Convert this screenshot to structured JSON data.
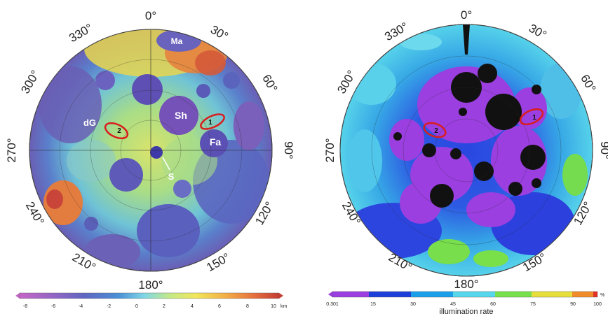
{
  "left_map": {
    "longitude_labels": [
      "0°",
      "30°",
      "60°",
      "90°",
      "120°",
      "150°",
      "180°",
      "210°",
      "240°",
      "270°",
      "300°",
      "330°"
    ],
    "feature_labels": {
      "ma": "Ma",
      "sh": "Sh",
      "fa": "Fa",
      "dg": "dG",
      "s": "S"
    },
    "site_labels": {
      "site1": "1",
      "site2": "2"
    },
    "colorbar": {
      "ticks": [
        "-8",
        "-6",
        "-4",
        "-2",
        "0",
        "2",
        "4",
        "6",
        "8",
        "10"
      ],
      "unit": "km",
      "colors": [
        "#b65bc3",
        "#8b63c2",
        "#5b69c1",
        "#4a8fd6",
        "#7ed3e8",
        "#bde88a",
        "#f2e35c",
        "#f0a844",
        "#e06a3e",
        "#c94436"
      ]
    }
  },
  "right_map": {
    "longitude_labels": [
      "0°",
      "30°",
      "60°",
      "90°",
      "120°",
      "150°",
      "180°",
      "210°",
      "240°",
      "270°",
      "300°",
      "330°"
    ],
    "site_labels": {
      "site1": "1",
      "site2": "2"
    },
    "colorbar": {
      "ticks": [
        "0.301",
        "15",
        "30",
        "45",
        "60",
        "75",
        "90",
        "100"
      ],
      "unit": "%",
      "title": "illumination rate",
      "colors": [
        "#9b3fe0",
        "#1d3fd9",
        "#1aa0ea",
        "#57d6ec",
        "#78e04a",
        "#e6de3a",
        "#f08a2a",
        "#e23226"
      ]
    }
  }
}
